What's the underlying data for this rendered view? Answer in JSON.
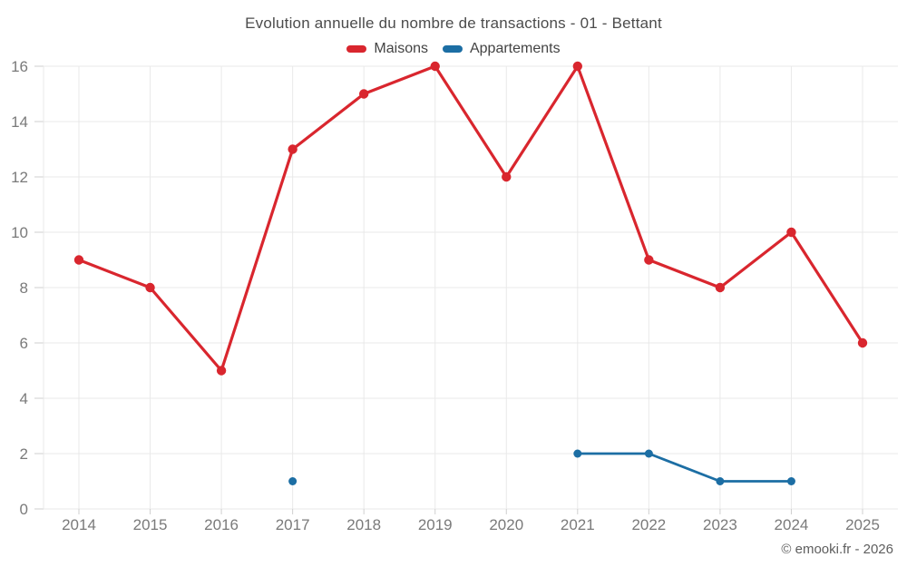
{
  "page": {
    "copyright": "© emooki.fr - 2026"
  },
  "chart_data": {
    "type": "line",
    "title": "Evolution annuelle du nombre de transactions - 01 - Bettant",
    "categories": [
      "2014",
      "2015",
      "2016",
      "2017",
      "2018",
      "2019",
      "2020",
      "2021",
      "2022",
      "2023",
      "2024",
      "2025"
    ],
    "series": [
      {
        "name": "Maisons",
        "color": "#d9262e",
        "values": [
          9,
          8,
          5,
          13,
          15,
          16,
          12,
          16,
          9,
          8,
          10,
          6
        ]
      },
      {
        "name": "Appartements",
        "color": "#1c6ea4",
        "values": [
          null,
          null,
          null,
          1,
          null,
          null,
          null,
          2,
          2,
          1,
          1,
          null
        ]
      }
    ],
    "xlabel": "",
    "ylabel": "",
    "ylim": [
      0,
      16
    ],
    "ytick_step": 2,
    "grid": true,
    "legend_position": "top-center",
    "colors": {
      "gridline": "#e9e9e9",
      "tick": "#cfcfcf",
      "tick_label": "#7a7a7a"
    }
  }
}
